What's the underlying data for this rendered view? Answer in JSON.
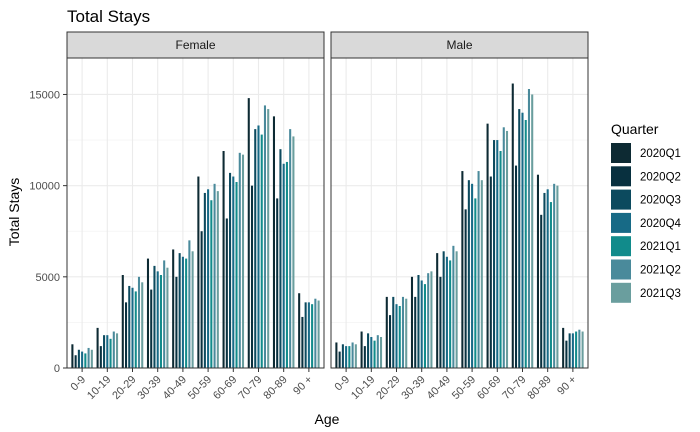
{
  "chart_data": {
    "type": "bar",
    "title": "Total Stays",
    "xlabel": "Age",
    "ylabel": "Total Stays",
    "ylim": [
      0,
      17000
    ],
    "yticks": [
      0,
      5000,
      10000,
      15000
    ],
    "categories": [
      "0-9",
      "10-19",
      "20-29",
      "30-39",
      "40-49",
      "50-59",
      "60-69",
      "70-79",
      "80-89",
      "90 +"
    ],
    "legend_title": "Quarter",
    "legend_position": "right",
    "grid": true,
    "series_names": [
      "2020Q1",
      "2020Q2",
      "2020Q3",
      "2020Q4",
      "2021Q1",
      "2021Q2",
      "2021Q3"
    ],
    "colors": [
      "#0d2a33",
      "#08303f",
      "#0c4a5e",
      "#176a86",
      "#118b8b",
      "#4a8a9b",
      "#6a9e9e"
    ],
    "panels": [
      {
        "label": "Female",
        "values": [
          [
            1300,
            700,
            1000,
            900,
            800,
            1100,
            1000
          ],
          [
            2200,
            1200,
            1800,
            1800,
            1600,
            2000,
            1900
          ],
          [
            5100,
            3600,
            4500,
            4400,
            4200,
            5000,
            4700
          ],
          [
            6000,
            4300,
            5600,
            5300,
            5100,
            5900,
            5500
          ],
          [
            6500,
            5000,
            6300,
            6100,
            6000,
            7000,
            6400
          ],
          [
            10500,
            7500,
            9600,
            9800,
            9200,
            10100,
            9700
          ],
          [
            11900,
            8200,
            10700,
            10500,
            10200,
            11800,
            11700
          ],
          [
            14800,
            10000,
            13100,
            13300,
            12800,
            14400,
            14200
          ],
          [
            13800,
            9300,
            12000,
            11200,
            11300,
            13100,
            12700
          ],
          [
            4100,
            2800,
            3600,
            3600,
            3500,
            3800,
            3700
          ]
        ]
      },
      {
        "label": "Male",
        "values": [
          [
            1400,
            900,
            1300,
            1200,
            1200,
            1400,
            1300
          ],
          [
            2000,
            1200,
            1900,
            1700,
            1500,
            1800,
            1700
          ],
          [
            3900,
            2900,
            3900,
            3500,
            3400,
            3900,
            3800
          ],
          [
            5000,
            3900,
            5100,
            4800,
            4600,
            5200,
            5300
          ],
          [
            6300,
            5000,
            6400,
            6100,
            5900,
            6700,
            6400
          ],
          [
            10800,
            8700,
            10300,
            10100,
            9300,
            10800,
            10300
          ],
          [
            13400,
            10500,
            12500,
            12500,
            11900,
            13200,
            13000
          ],
          [
            15600,
            11100,
            14200,
            14000,
            13600,
            15300,
            15000
          ],
          [
            10600,
            8400,
            9600,
            9800,
            9100,
            10100,
            10000
          ],
          [
            2200,
            1500,
            1900,
            1900,
            2000,
            2100,
            2000
          ]
        ]
      }
    ]
  }
}
